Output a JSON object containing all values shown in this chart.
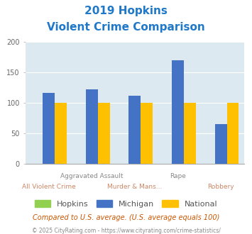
{
  "title_line1": "2019 Hopkins",
  "title_line2": "Violent Crime Comparison",
  "categories": [
    "All Violent Crime",
    "Aggravated Assault",
    "Murder & Mans...",
    "Rape",
    "Robbery"
  ],
  "xtick_top": [
    "",
    "Aggravated Assault",
    "",
    "Rape",
    ""
  ],
  "xtick_bottom": [
    "All Violent Crime",
    "",
    "Murder & Mans...",
    "",
    "Robbery"
  ],
  "hopkins_values": [
    0,
    0,
    0,
    0,
    0
  ],
  "michigan_values": [
    116,
    122,
    112,
    170,
    65
  ],
  "national_values": [
    100,
    100,
    100,
    100,
    100
  ],
  "hopkins_color": "#92d050",
  "michigan_color": "#4472c4",
  "national_color": "#ffc000",
  "title_color": "#1f78c8",
  "bg_color": "#dce9f0",
  "ylim": [
    0,
    200
  ],
  "yticks": [
    0,
    50,
    100,
    150,
    200
  ],
  "bar_width": 0.28,
  "footnote1": "Compared to U.S. average. (U.S. average equals 100)",
  "footnote2": "© 2025 CityRating.com - https://www.cityrating.com/crime-statistics/",
  "footnote1_color": "#cc5500",
  "footnote2_color": "#888888",
  "legend_labels": [
    "Hopkins",
    "Michigan",
    "National"
  ]
}
